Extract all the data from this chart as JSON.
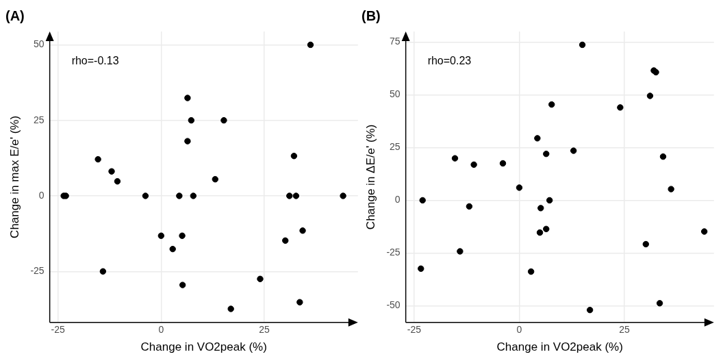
{
  "chart_data": [
    {
      "type": "scatter",
      "title": "(A)",
      "xlabel": "Change in VO2peak (%)",
      "ylabel": "Change in max E/e' (%)",
      "annotations": [
        "rho=-0.13"
      ],
      "x": [
        -23.6,
        -23.1,
        -15.3,
        -12.0,
        -10.6,
        -3.8,
        -14.1,
        0,
        2.8,
        4.4,
        5.1,
        5.2,
        6.4,
        6.4,
        7.3,
        7.8,
        13.1,
        15.2,
        16.9,
        24.0,
        30.1,
        31.1,
        32.7,
        32.2,
        34.3,
        33.6,
        36.2,
        44.1
      ],
      "series": [
        {
          "color": "#000000",
          "values": [
            0,
            0,
            12.1,
            8.1,
            4.8,
            0,
            -25,
            -13.2,
            -17.6,
            0,
            -13.2,
            -29.5,
            32.4,
            18.1,
            25,
            0,
            5.5,
            25,
            -37.4,
            -27.5,
            -14.8,
            0,
            0,
            13.2,
            -11.5,
            -35.2,
            50,
            0
          ]
        }
      ],
      "xlim": [
        -27,
        47.7
      ],
      "ylim": [
        -41.9,
        54.4
      ],
      "xticks": [
        -25,
        0,
        25
      ],
      "yticks": [
        -25,
        0,
        25,
        50
      ],
      "grid": true,
      "marker": "circle",
      "legend": false
    },
    {
      "type": "scatter",
      "title": "(B)",
      "xlabel": "Change in VO2peak (%)",
      "ylabel": "Change in ΔE/e' (%)",
      "annotations": [
        "rho=0.23"
      ],
      "x": [
        15.0,
        32.0,
        32.5,
        31.1,
        24.0,
        7.7,
        4.3,
        6.4,
        12.9,
        -15.3,
        -10.8,
        -3.9,
        34.2,
        0,
        36.1,
        -23.0,
        -11.9,
        5.1,
        7.2,
        4.9,
        6.4,
        44.0,
        30.1,
        -14.1,
        -23.4,
        2.8,
        16.8,
        33.4
      ],
      "series": [
        {
          "color": "#000000",
          "values": [
            73.7,
            61.5,
            60.7,
            49.5,
            44,
            45.4,
            29.4,
            22,
            23.5,
            19.9,
            16.9,
            17.5,
            20.7,
            6.0,
            5.3,
            0,
            -2.9,
            -3.7,
            0,
            -15.3,
            -13.6,
            -14.8,
            -20.8,
            -24.2,
            -32.4,
            -33.8,
            -52,
            -48.8
          ]
        }
      ],
      "xlim": [
        -27,
        46.3
      ],
      "ylim": [
        -57.9,
        80
      ],
      "xticks": [
        -25,
        0,
        25
      ],
      "yticks": [
        -50,
        -25,
        0,
        25,
        50,
        75
      ],
      "grid": true,
      "marker": "circle",
      "legend": false
    }
  ]
}
